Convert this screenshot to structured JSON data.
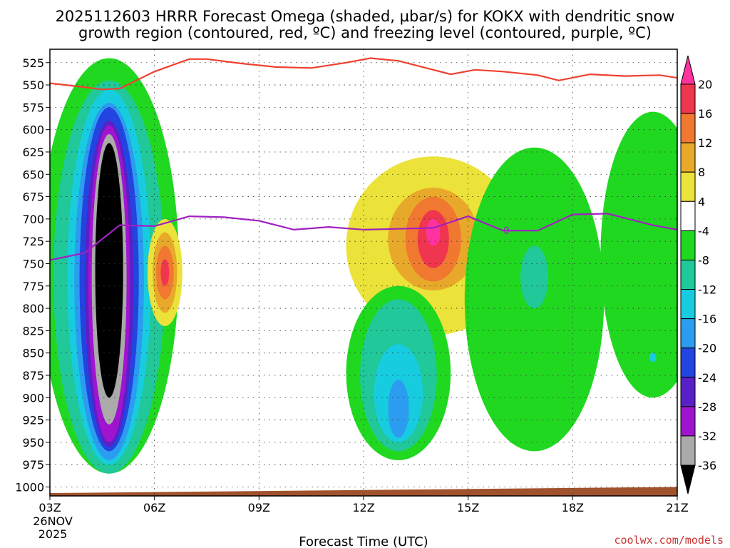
{
  "title": {
    "line1": "2025112603 HRRR Forecast Omega (shaded, µbar/s) for KOKX with dendritic snow",
    "line2": "growth region (contoured, red, ºC) and freezing level (contoured, purple, ºC)"
  },
  "credit": "coolwx.com/models",
  "chart_data": {
    "type": "heatmap",
    "title": "2025112603 HRRR Forecast Omega (shaded, µbar/s) for KOKX with dendritic snow growth region (contoured, red, ºC) and freezing level (contoured, purple, ºC)",
    "xlabel": "Forecast Time (UTC)",
    "ylabel": "",
    "x_range_hours": [
      0,
      18
    ],
    "y_range_hpa": [
      510,
      1010
    ],
    "x_ticks": [
      {
        "hour": 0,
        "label": "03Z"
      },
      {
        "hour": 3,
        "label": "06Z"
      },
      {
        "hour": 6,
        "label": "09Z"
      },
      {
        "hour": 9,
        "label": "12Z"
      },
      {
        "hour": 12,
        "label": "15Z"
      },
      {
        "hour": 15,
        "label": "18Z"
      },
      {
        "hour": 18,
        "label": "21Z"
      }
    ],
    "date_label": {
      "line1": "26NOV",
      "line2": "2025"
    },
    "y_ticks": [
      525,
      550,
      575,
      600,
      625,
      650,
      675,
      700,
      725,
      750,
      775,
      800,
      825,
      850,
      875,
      900,
      925,
      950,
      975,
      1000
    ],
    "colorbar": {
      "labels": [
        "20",
        "16",
        "12",
        "8",
        "4",
        "-4",
        "-8",
        "-12",
        "-16",
        "-20",
        "-24",
        "-28",
        "-32",
        "-36"
      ],
      "bins": [
        {
          "range": "> 20",
          "color": "#ff33a0"
        },
        {
          "range": "16 to 20",
          "color": "#f0354e"
        },
        {
          "range": "12 to 16",
          "color": "#f07830"
        },
        {
          "range": "8 to 12",
          "color": "#e8a92a"
        },
        {
          "range": "4 to 8",
          "color": "#ebe23a"
        },
        {
          "range": "-4 to 4",
          "color": "#ffffff"
        },
        {
          "range": "-8 to -4",
          "color": "#20d820"
        },
        {
          "range": "-12 to -8",
          "color": "#20c89a"
        },
        {
          "range": "-16 to -12",
          "color": "#18cce0"
        },
        {
          "range": "-20 to -16",
          "color": "#2c9cf0"
        },
        {
          "range": "-24 to -20",
          "color": "#2244e0"
        },
        {
          "range": "-28 to -24",
          "color": "#5a20c8"
        },
        {
          "range": "-32 to -28",
          "color": "#a014d0"
        },
        {
          "range": "-36 to -32",
          "color": "#aaaaaa"
        },
        {
          "range": "< -36",
          "color": "#000000"
        }
      ]
    },
    "regions": [
      {
        "name": "omega-upward-core",
        "levels": [
          -4,
          -8,
          -12,
          -16,
          -20,
          -24,
          -28,
          -32,
          -36
        ],
        "center": [
          1.7,
          750
        ],
        "half_width_hours": [
          2.0,
          1.6,
          1.2,
          1.0,
          0.85,
          0.7,
          0.6,
          0.5,
          0.4
        ],
        "top_hpa": [
          520,
          545,
          555,
          570,
          575,
          590,
          595,
          605,
          615
        ],
        "bottom_hpa": [
          985,
          985,
          975,
          970,
          960,
          955,
          950,
          930,
          900
        ]
      },
      {
        "name": "omega-downward-0530z",
        "levels": [
          4,
          8,
          12,
          16
        ],
        "center": [
          3.3,
          760
        ],
        "half_width_hours": [
          0.5,
          0.35,
          0.25,
          0.12
        ],
        "top_hpa": [
          700,
          715,
          730,
          745
        ],
        "bottom_hpa": [
          820,
          805,
          790,
          775
        ]
      },
      {
        "name": "omega-downward-14z",
        "levels": [
          4,
          8,
          12,
          16,
          20
        ],
        "center": [
          11.0,
          710
        ],
        "half_width_hours": [
          2.5,
          1.3,
          0.8,
          0.45,
          0.2
        ],
        "top_hpa": [
          630,
          665,
          675,
          690,
          700
        ],
        "bottom_hpa": [
          830,
          780,
          770,
          755,
          730
        ]
      },
      {
        "name": "omega-upward-1330z",
        "levels": [
          -4,
          -8,
          -12,
          -16
        ],
        "center": [
          10.0,
          885
        ],
        "half_width_hours": [
          1.5,
          1.1,
          0.7,
          0.3
        ],
        "top_hpa": [
          775,
          790,
          840,
          880
        ],
        "bottom_hpa": [
          970,
          960,
          950,
          945
        ]
      },
      {
        "name": "omega-upward-1630z",
        "levels": [
          -4,
          -8
        ],
        "center": [
          13.9,
          770
        ],
        "half_width_hours": [
          2.0,
          0.4
        ],
        "top_hpa": [
          620,
          730
        ],
        "bottom_hpa": [
          960,
          800
        ]
      },
      {
        "name": "omega-upward-2030z",
        "levels": [
          -4,
          -12
        ],
        "center": [
          17.3,
          770
        ],
        "half_width_hours": [
          1.5,
          0.1
        ],
        "top_hpa": [
          580,
          850
        ],
        "bottom_hpa": [
          900,
          860
        ]
      }
    ],
    "series": [
      {
        "name": "dendritic snow growth region (red contour)",
        "color": "#f04030",
        "x_hours": [
          0,
          0.9,
          1.5,
          2.0,
          3.0,
          4.0,
          4.5,
          5.5,
          6.5,
          7.5,
          8.5,
          9.2,
          10.0,
          10.8,
          11.5,
          12.2,
          13.0,
          14.0,
          14.6,
          15.5,
          16.5,
          17.5,
          18.0
        ],
        "values_hpa": [
          548,
          552,
          555,
          554,
          535,
          521,
          521,
          526,
          530,
          531,
          525,
          520,
          523,
          531,
          538,
          533,
          535,
          539,
          545,
          538,
          540,
          539,
          542
        ]
      },
      {
        "name": "freezing level (purple contour)",
        "color": "#a020c0",
        "x_hours": [
          0,
          1.0,
          2.0,
          3.0,
          4.0,
          5.0,
          6.0,
          7.0,
          8.0,
          9.0,
          10.0,
          11.0,
          12.0,
          13.0,
          14.0,
          15.0,
          16.0,
          16.5,
          17.3,
          18.0
        ],
        "values_hpa": [
          746,
          738,
          707,
          708,
          697,
          698,
          702,
          712,
          709,
          712,
          711,
          710,
          697,
          713,
          713,
          695,
          694,
          699,
          707,
          712
        ],
        "label": "0",
        "label_at_hour": 13.1
      }
    ],
    "ground_fill": {
      "name": "terrain",
      "color": "#a0522d",
      "top_hpa_start": 1010,
      "top_hpa_end": 1000
    }
  }
}
